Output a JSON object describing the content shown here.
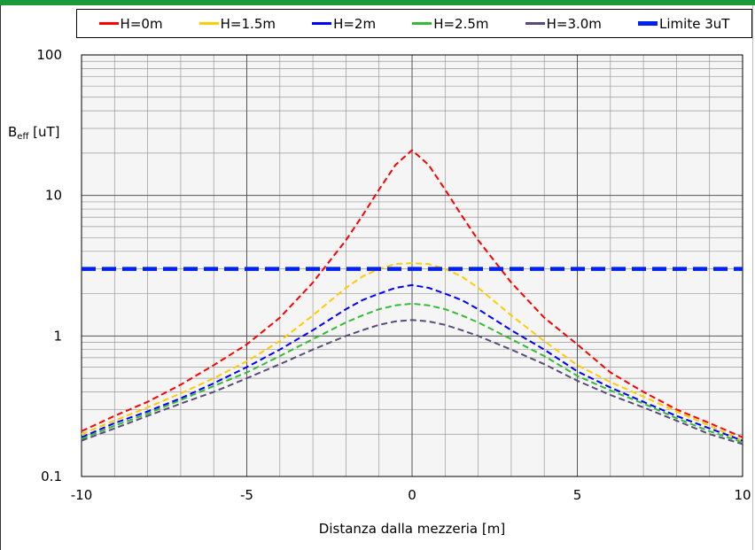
{
  "colors": {
    "top_band": "#1a9a3a",
    "plot_background": "#f5f5f5",
    "grid_major": "#555555",
    "grid_minor": "#999999"
  },
  "chart_data": {
    "type": "line",
    "ylabel_main": "B",
    "ylabel_sub": "eff",
    "ylabel_unit": " [uT]",
    "xlabel": "Distanza dalla mezzeria [m]",
    "xlim": [
      -10,
      10
    ],
    "ylim": [
      0.1,
      100
    ],
    "y_scale": "log",
    "grid": true,
    "legend_position": "top",
    "x_ticks": [
      -10,
      -5,
      0,
      5,
      10
    ],
    "x_tick_labels": [
      "-10",
      "-5",
      "0",
      "5",
      "10"
    ],
    "y_ticks": [
      0.1,
      1,
      10,
      100
    ],
    "y_tick_labels": [
      "0.1",
      "1",
      "10",
      "100"
    ],
    "x": [
      -10,
      -9,
      -8,
      -7,
      -6,
      -5,
      -4,
      -3,
      -2,
      -1.5,
      -1,
      -0.5,
      0,
      0.5,
      1,
      1.5,
      2,
      3,
      4,
      5,
      6,
      7,
      8,
      9,
      10
    ],
    "series": [
      {
        "name": "H=0m",
        "color": "#ff0000",
        "dash": "dashed",
        "values": [
          0.21,
          0.27,
          0.34,
          0.45,
          0.62,
          0.87,
          1.35,
          2.4,
          4.8,
          7.2,
          11.0,
          16.5,
          21.0,
          16.5,
          11.0,
          7.2,
          4.8,
          2.4,
          1.35,
          0.87,
          0.55,
          0.4,
          0.3,
          0.24,
          0.19
        ]
      },
      {
        "name": "H=1.5m",
        "color": "#ffcc00",
        "dash": "dashed",
        "values": [
          0.2,
          0.25,
          0.31,
          0.39,
          0.5,
          0.66,
          0.92,
          1.4,
          2.2,
          2.65,
          3.0,
          3.25,
          3.3,
          3.25,
          3.0,
          2.65,
          2.2,
          1.4,
          0.92,
          0.62,
          0.47,
          0.37,
          0.29,
          0.23,
          0.18
        ]
      },
      {
        "name": "H=2m",
        "color": "#0000ff",
        "dash": "dashed",
        "values": [
          0.19,
          0.24,
          0.29,
          0.36,
          0.46,
          0.6,
          0.8,
          1.1,
          1.55,
          1.8,
          2.0,
          2.2,
          2.3,
          2.2,
          2.0,
          1.8,
          1.55,
          1.1,
          0.8,
          0.56,
          0.43,
          0.34,
          0.27,
          0.22,
          0.18
        ]
      },
      {
        "name": "H=2.5m",
        "color": "#33bb33",
        "dash": "dashed",
        "values": [
          0.185,
          0.23,
          0.28,
          0.35,
          0.44,
          0.55,
          0.72,
          0.95,
          1.25,
          1.4,
          1.55,
          1.65,
          1.7,
          1.65,
          1.55,
          1.4,
          1.25,
          0.95,
          0.72,
          0.52,
          0.41,
          0.33,
          0.26,
          0.21,
          0.175
        ]
      },
      {
        "name": "H=3.0m",
        "color": "#5a4a7a",
        "dash": "dashed",
        "values": [
          0.18,
          0.22,
          0.27,
          0.33,
          0.4,
          0.5,
          0.63,
          0.8,
          1.0,
          1.1,
          1.2,
          1.27,
          1.3,
          1.27,
          1.2,
          1.1,
          1.0,
          0.8,
          0.63,
          0.48,
          0.38,
          0.31,
          0.25,
          0.2,
          0.17
        ]
      },
      {
        "name": "Limite 3uT",
        "color": "#0022ee",
        "dash": "thick-dashed",
        "values": [
          3,
          3,
          3,
          3,
          3,
          3,
          3,
          3,
          3,
          3,
          3,
          3,
          3,
          3,
          3,
          3,
          3,
          3,
          3,
          3,
          3,
          3,
          3,
          3,
          3
        ]
      }
    ]
  }
}
